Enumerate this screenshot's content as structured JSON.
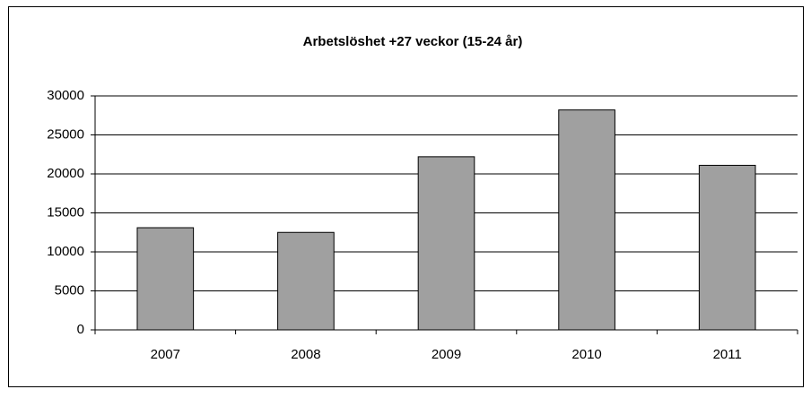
{
  "chart_data": {
    "type": "bar",
    "title": "Arbetslöshet +27 veckor (15-24 år)",
    "categories": [
      "2007",
      "2008",
      "2009",
      "2010",
      "2011"
    ],
    "values": [
      13100,
      12500,
      22200,
      28200,
      21100
    ],
    "color": "#a0a0a0",
    "ylim": [
      0,
      30000
    ],
    "yticks": [
      0,
      5000,
      10000,
      15000,
      20000,
      25000,
      30000
    ],
    "grid": true
  }
}
